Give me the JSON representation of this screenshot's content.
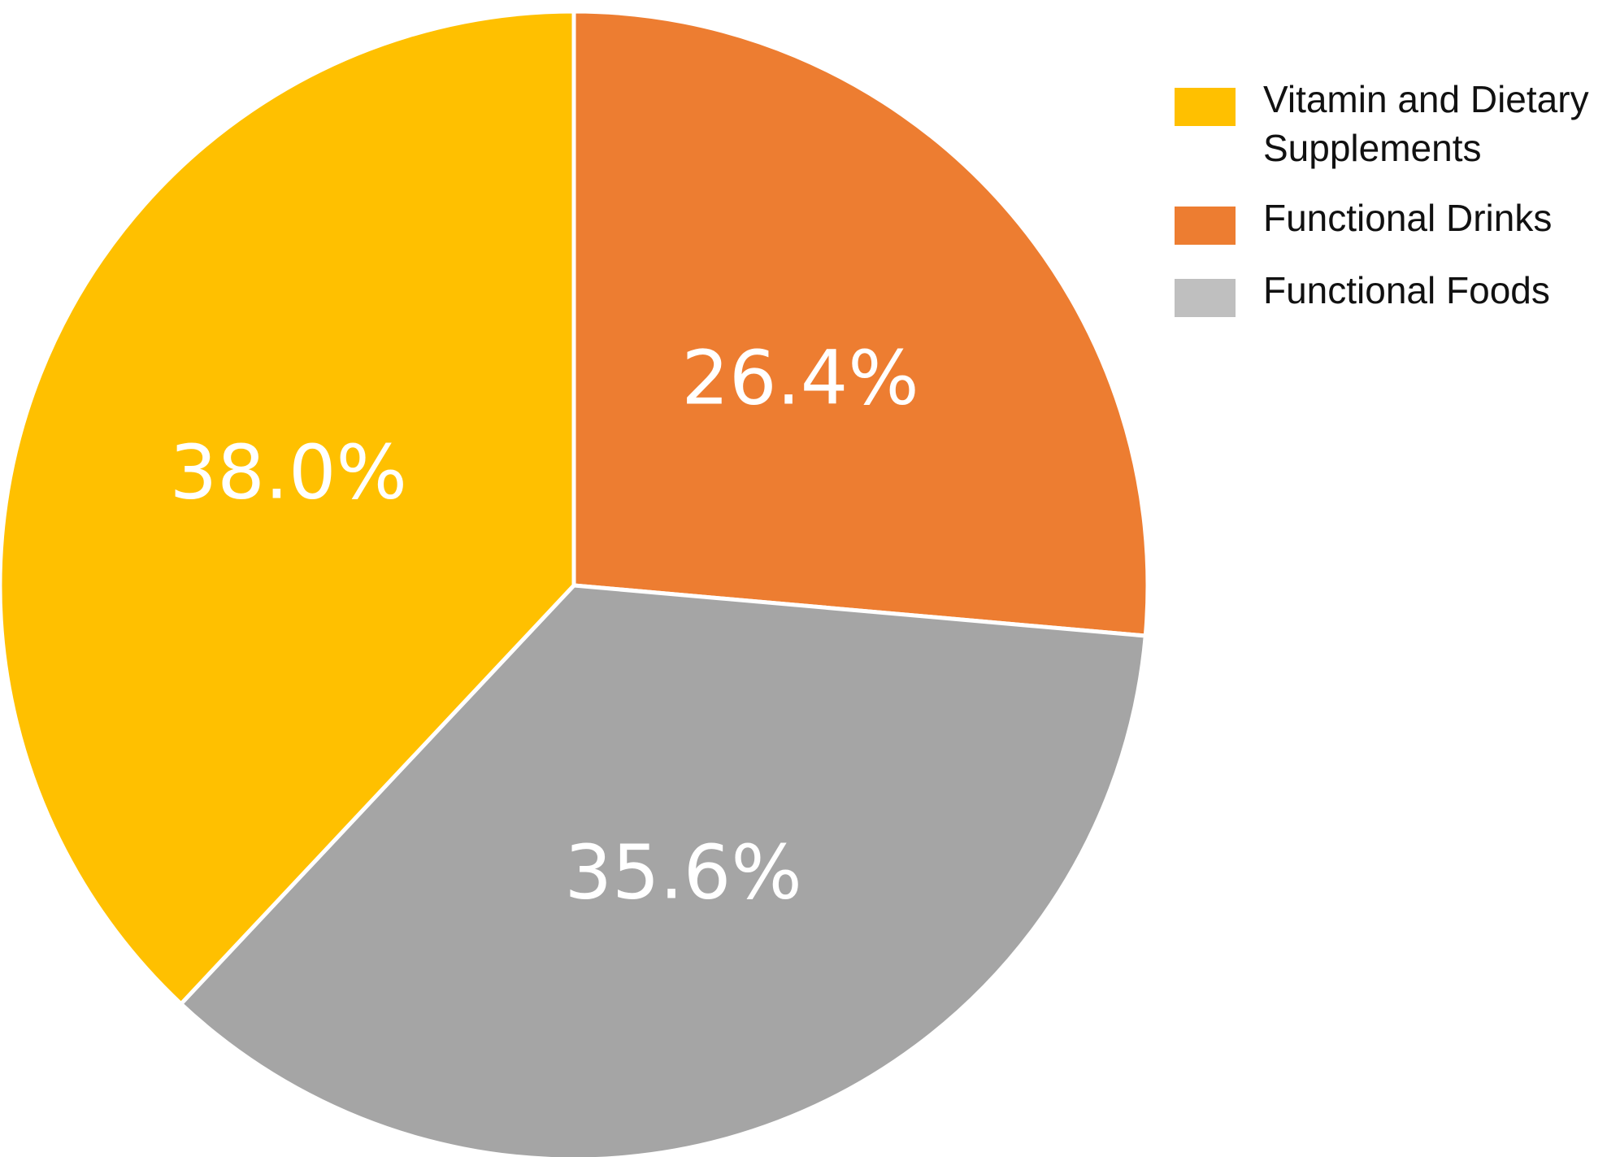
{
  "chart_data": {
    "type": "pie",
    "title": "",
    "start_angle_deg": 0,
    "direction": "clockwise",
    "slices": [
      {
        "label": "Functional Drinks",
        "value": 26.4,
        "display": "26.4%",
        "color": "#ED7D31"
      },
      {
        "label": "Functional Foods",
        "value": 35.6,
        "display": "35.6%",
        "color": "#A5A5A5"
      },
      {
        "label": "Vitamin and Dietary Supplements",
        "value": 38.0,
        "display": "38.0%",
        "color": "#FFC000"
      }
    ],
    "legend": {
      "placement": "top-right",
      "entries": [
        {
          "label": "Vitamin and Dietary Supplements",
          "color": "#FFC000"
        },
        {
          "label": "Functional Drinks",
          "color": "#ED7D31"
        },
        {
          "label": "Functional Foods",
          "color": "#BFBFBF"
        }
      ]
    },
    "separator_color": "#ffffff"
  }
}
